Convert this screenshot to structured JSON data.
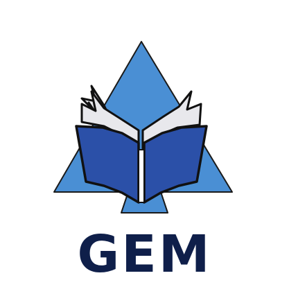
{
  "brand": {
    "name": "GEM"
  },
  "colors": {
    "triangle": "#4a8fd4",
    "triangle_outline": "#1a1a1a",
    "book_cover": "#2b50a8",
    "book_pages": "#e8e8ec",
    "book_outline": "#111111",
    "spine": "#ffffff",
    "text": "#0f1f4a",
    "background": "#ffffff"
  },
  "icons": {
    "mark": "open-book-triangle-icon"
  }
}
